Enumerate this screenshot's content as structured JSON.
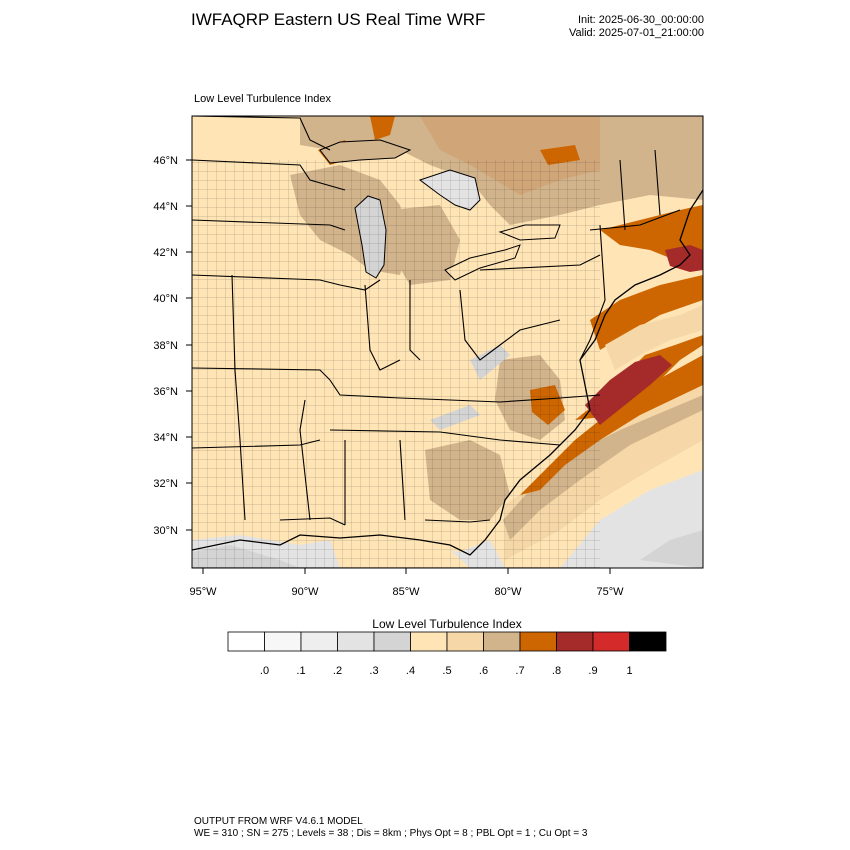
{
  "header": {
    "title": "IWFAQRP Eastern US Real Time WRF",
    "init": "Init: 2025-06-30_00:00:00",
    "valid": "Valid: 2025-07-01_21:00:00"
  },
  "map": {
    "label": "Low Level Turbulence Index",
    "latitude_labels": [
      "46°N",
      "44°N",
      "42°N",
      "40°N",
      "38°N",
      "36°N",
      "34°N",
      "32°N",
      "30°N"
    ],
    "longitude_labels": [
      "95°W",
      "90°W",
      "85°W",
      "80°W",
      "75°W"
    ]
  },
  "colorbar": {
    "title": "Low Level Turbulence Index",
    "tick_labels": [
      ".0",
      ".1",
      ".2",
      ".3",
      ".4",
      ".5",
      ".6",
      ".7",
      ".8",
      ".9",
      "1"
    ],
    "colors": [
      "#ffffff",
      "#f7f7f7",
      "#eeeeee",
      "#e3e3e3",
      "#d4d4d4",
      "#ffe4b5",
      "#f5d7a8",
      "#d2b48c",
      "#cd6600",
      "#a52a2a",
      "#d42a2a",
      "#000000"
    ]
  },
  "footer": {
    "line1": "OUTPUT FROM WRF V4.6.1 MODEL",
    "line2": "WE = 310 ; SN = 275 ; Levels = 38 ; Dis = 8km ; Phys Opt = 8 ; PBL Opt = 1 ; Cu Opt = 3"
  }
}
